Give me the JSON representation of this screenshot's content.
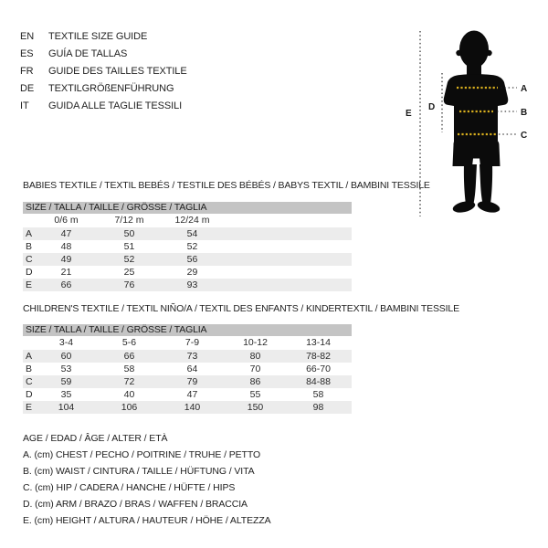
{
  "languages": [
    {
      "code": "EN",
      "label": "TEXTILE SIZE GUIDE"
    },
    {
      "code": "ES",
      "label": "GUÍA DE TALLAS"
    },
    {
      "code": "FR",
      "label": "GUIDE DES TAILLES TEXTILE"
    },
    {
      "code": "DE",
      "label": "TEXTILGRÖßENFÜHRUNG"
    },
    {
      "code": "IT",
      "label": "GUIDA ALLE TAGLIE TESSILI"
    }
  ],
  "figure": {
    "labels": {
      "a": "A",
      "b": "B",
      "c": "C",
      "d": "D",
      "e": "E"
    }
  },
  "babies": {
    "title": "BABIES TEXTILE / TEXTIL BEBÉS / TESTILE DES BÉBÉS / BABYS TEXTIL / BAMBINI TESSILE",
    "header": "SIZE / TALLA / TAILLE / GRÖSSE / TAGLIA",
    "columns": [
      "0/6 m",
      "7/12 m",
      "12/24 m"
    ],
    "rows": [
      {
        "label": "A",
        "values": [
          "47",
          "50",
          "54"
        ]
      },
      {
        "label": "B",
        "values": [
          "48",
          "51",
          "52"
        ]
      },
      {
        "label": "C",
        "values": [
          "49",
          "52",
          "56"
        ]
      },
      {
        "label": "D",
        "values": [
          "21",
          "25",
          "29"
        ]
      },
      {
        "label": "E",
        "values": [
          "66",
          "76",
          "93"
        ]
      }
    ]
  },
  "children": {
    "title": "CHILDREN'S TEXTILE / TEXTIL NIÑO/A / TEXTIL DES ENFANTS / KINDERTEXTIL / BAMBINI TESSILE",
    "header": "SIZE / TALLA / TAILLE / GRÖSSE / TAGLIA",
    "columns": [
      "3-4",
      "5-6",
      "7-9",
      "10-12",
      "13-14"
    ],
    "rows": [
      {
        "label": "A",
        "values": [
          "60",
          "66",
          "73",
          "80",
          "78-82"
        ]
      },
      {
        "label": "B",
        "values": [
          "53",
          "58",
          "64",
          "70",
          "66-70"
        ]
      },
      {
        "label": "C",
        "values": [
          "59",
          "72",
          "79",
          "86",
          "84-88"
        ]
      },
      {
        "label": "D",
        "values": [
          "35",
          "40",
          "47",
          "55",
          "58"
        ]
      },
      {
        "label": "E",
        "values": [
          "104",
          "106",
          "140",
          "150",
          "98"
        ]
      }
    ]
  },
  "legend": {
    "age": "AGE / EDAD / ÂGE / ALTER / ETÀ",
    "items": [
      "A. (cm) CHEST / PECHO / POITRINE / TRUHE / PETTO",
      "B. (cm) WAIST / CINTURA / TAILLE / HÜFTUNG / VITA",
      "C. (cm) HIP / CADERA / HANCHE / HÜFTE / HIPS",
      "D. (cm) ARM / BRAZO / BRAS / WAFFEN / BRACCIA",
      "E. (cm) HEIGHT / ALTURA / HAUTEUR / HÖHE / ALTEZZA"
    ]
  },
  "colors": {
    "silhouette": "#0b0b0b",
    "measure_line": "#d9af1e",
    "header_bar": "#c4c4c4",
    "row_stripe": "#ececec",
    "text": "#222222"
  }
}
